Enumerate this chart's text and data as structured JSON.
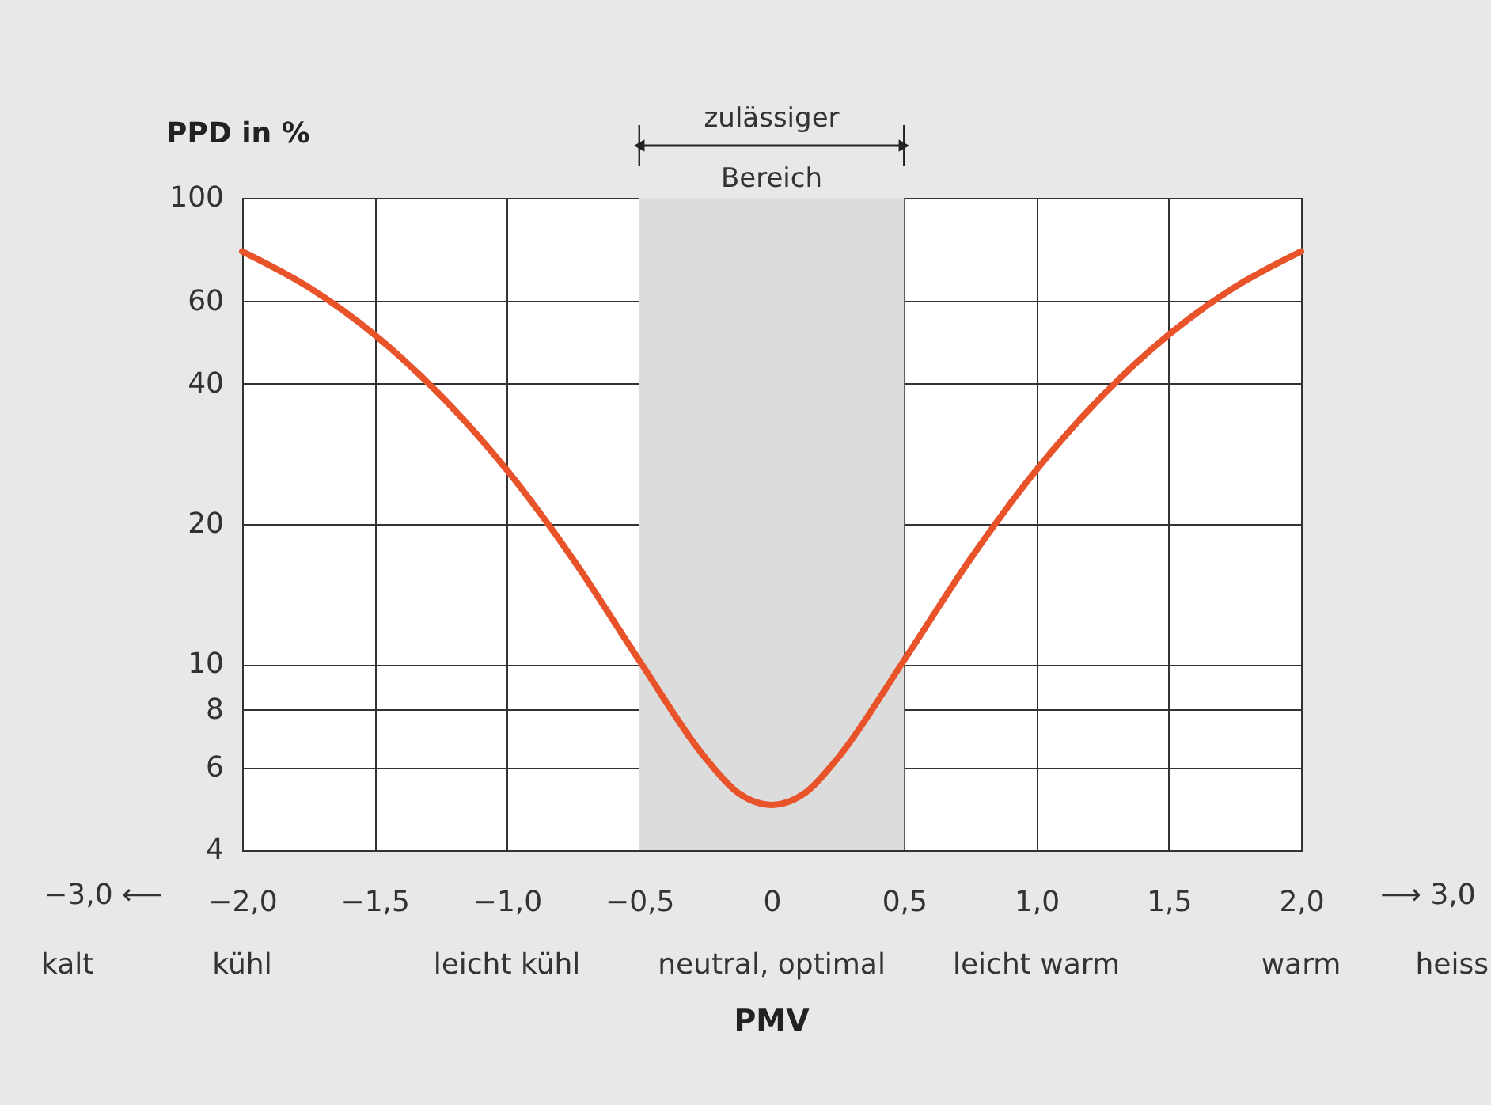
{
  "chart_data": {
    "type": "line",
    "xlabel": "PMV",
    "ylabel": "PPD in %",
    "x": [
      -2,
      -1.75,
      -1.5,
      -1.25,
      -1,
      -0.75,
      -0.5,
      -0.25,
      -0.125,
      0,
      0.125,
      0.25,
      0.5,
      0.75,
      1,
      1.25,
      1.5,
      1.75,
      2
    ],
    "series": [
      {
        "color": "#e8532a",
        "values": [
          76.8,
          64.4,
          50.9,
          37.7,
          26.1,
          16.8,
          10.2,
          6.3,
          5.3,
          5,
          5.3,
          6.3,
          10.2,
          16.8,
          26.1,
          37.7,
          50.9,
          64.4,
          76.8
        ]
      }
    ],
    "log": true,
    "xlim": [
      -2,
      2
    ],
    "ylim": [
      4,
      100
    ],
    "xticks": [
      {
        "value": -2,
        "label": "−2,0"
      },
      {
        "value": -1.5,
        "label": "−1,5"
      },
      {
        "value": -1,
        "label": "−1,0"
      },
      {
        "value": -0.5,
        "label": "−0,5"
      },
      0,
      {
        "value": 0.5,
        "label": "0,5"
      },
      {
        "value": 1,
        "label": "1,0"
      },
      {
        "value": 1.5,
        "label": "1,5"
      },
      {
        "value": 2,
        "label": "2,0"
      }
    ],
    "yticks": [
      4,
      6,
      8,
      10,
      20,
      40,
      60,
      100
    ],
    "bands": [
      {
        "axis": "x",
        "from": -0.5,
        "to": 0.5,
        "label": "zulässiger Bereich",
        "color": "#dcdcdc"
      }
    ],
    "annotations": [
      "−3,0 ⟵",
      "⟶ 3,0",
      "kalt",
      "kühl",
      "leicht kühl",
      "neutral, optimal",
      "leicht warm",
      "warm",
      "heiss"
    ],
    "grid": true,
    "marker": "none",
    "line_style": "solid"
  }
}
